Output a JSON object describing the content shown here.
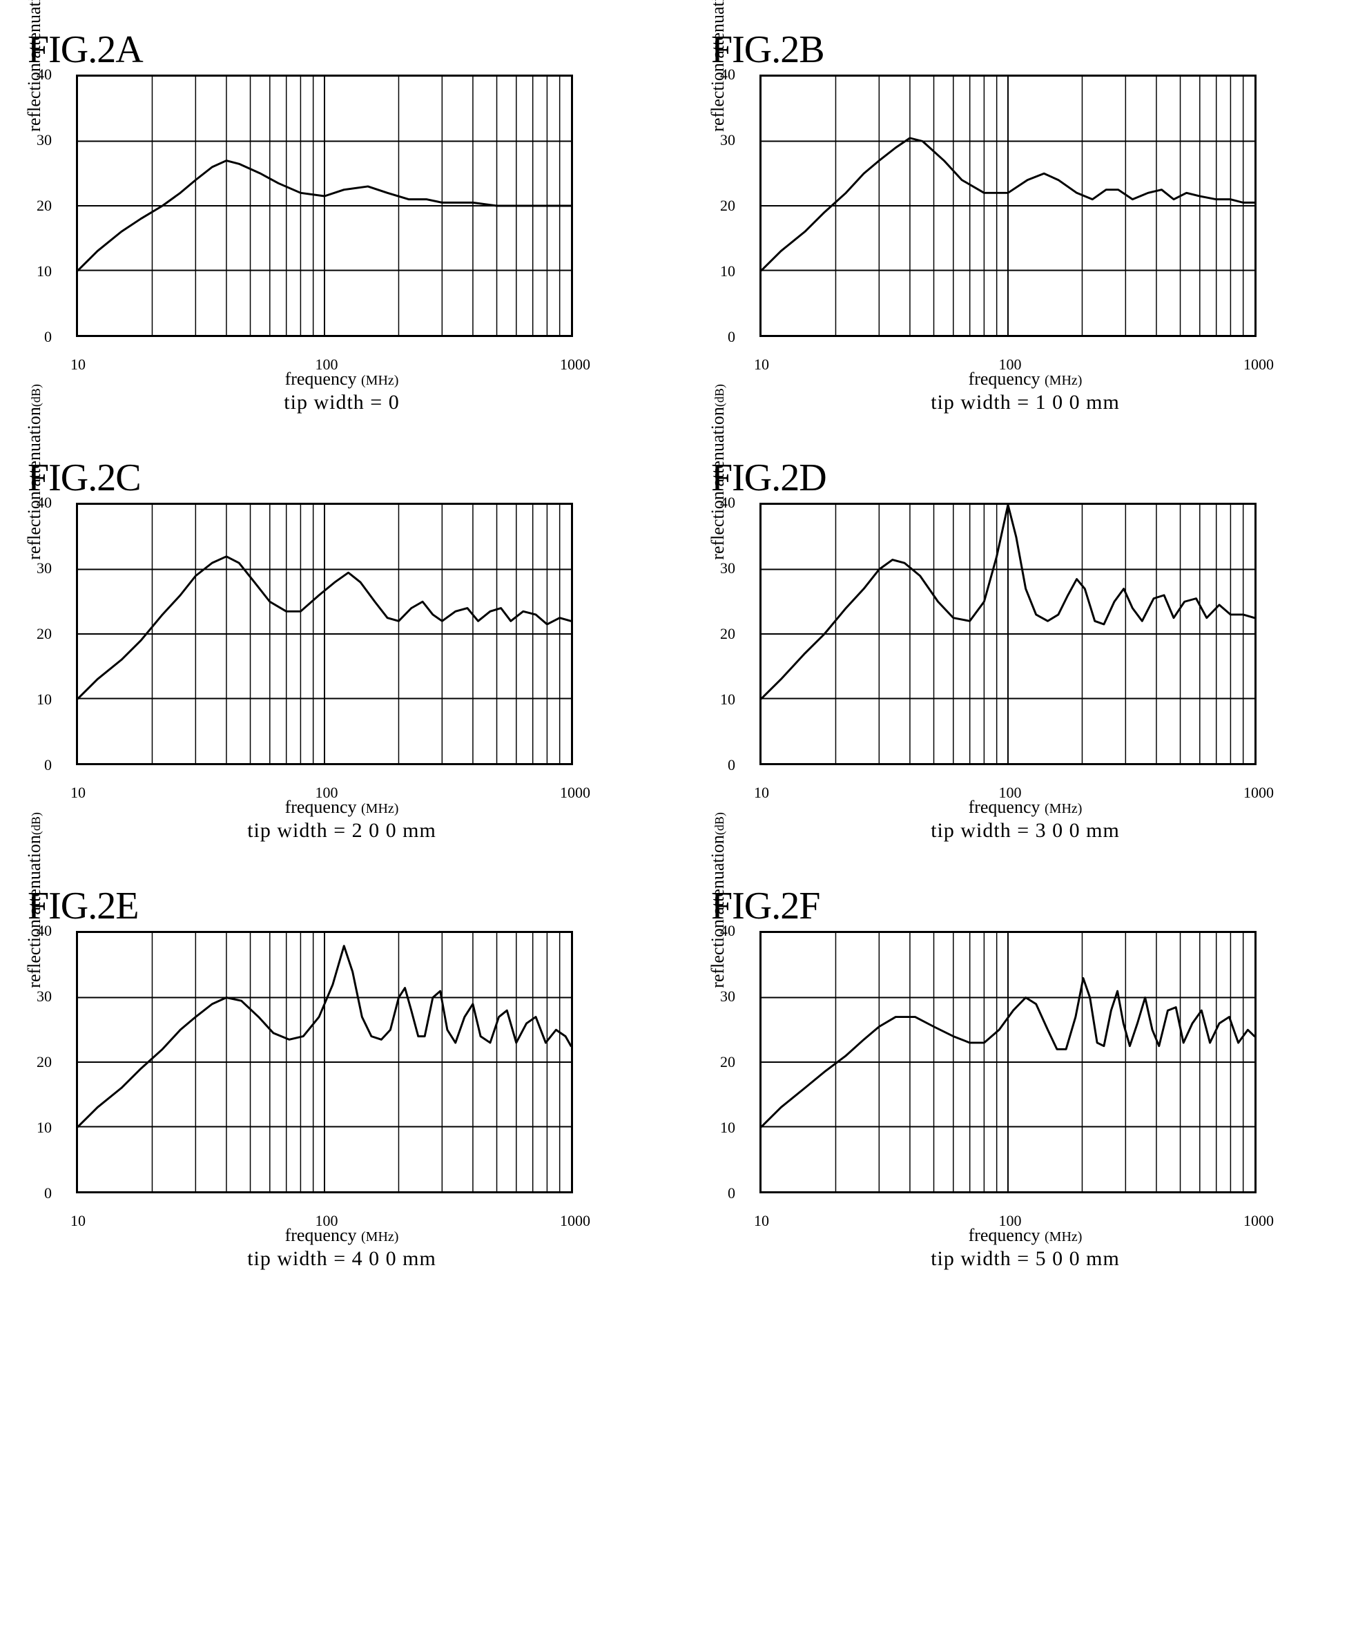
{
  "layout": {
    "cols": 2,
    "rows": 3
  },
  "axes": {
    "xlabel": "frequency",
    "xunit": "(MHz)",
    "ylabel": "reflection attenuation",
    "yunit": "(dB)",
    "xscale": "log",
    "xlim": [
      10,
      1000
    ],
    "xticks": [
      10,
      100,
      1000
    ],
    "ylim": [
      0,
      40
    ],
    "yticks": [
      0,
      10,
      20,
      30,
      40
    ],
    "grid_color": "#000000",
    "line_color": "#000000",
    "line_width": 3,
    "background_color": "#ffffff",
    "title_fontsize": 56,
    "label_fontsize": 26,
    "tick_fontsize": 22,
    "subtitle_fontsize": 30
  },
  "charts": [
    {
      "id": "A",
      "title": "FIG.2A",
      "subtitle": "tip width = 0",
      "points": [
        [
          10,
          10
        ],
        [
          12,
          13
        ],
        [
          15,
          16
        ],
        [
          18,
          18
        ],
        [
          22,
          20
        ],
        [
          26,
          22
        ],
        [
          30,
          24
        ],
        [
          35,
          26
        ],
        [
          40,
          27
        ],
        [
          45,
          26.5
        ],
        [
          55,
          25
        ],
        [
          65,
          23.5
        ],
        [
          80,
          22
        ],
        [
          100,
          21.5
        ],
        [
          120,
          22.5
        ],
        [
          150,
          23
        ],
        [
          180,
          22
        ],
        [
          220,
          21
        ],
        [
          260,
          21
        ],
        [
          300,
          20.5
        ],
        [
          400,
          20.5
        ],
        [
          500,
          20
        ],
        [
          700,
          20
        ],
        [
          1000,
          20
        ]
      ]
    },
    {
      "id": "B",
      "title": "FIG.2B",
      "subtitle": "tip width = 1 0 0 mm",
      "points": [
        [
          10,
          10
        ],
        [
          12,
          13
        ],
        [
          15,
          16
        ],
        [
          18,
          19
        ],
        [
          22,
          22
        ],
        [
          26,
          25
        ],
        [
          30,
          27
        ],
        [
          35,
          29
        ],
        [
          40,
          30.5
        ],
        [
          45,
          30
        ],
        [
          55,
          27
        ],
        [
          65,
          24
        ],
        [
          80,
          22
        ],
        [
          100,
          22
        ],
        [
          120,
          24
        ],
        [
          140,
          25
        ],
        [
          160,
          24
        ],
        [
          190,
          22
        ],
        [
          220,
          21
        ],
        [
          250,
          22.5
        ],
        [
          280,
          22.5
        ],
        [
          320,
          21
        ],
        [
          370,
          22
        ],
        [
          420,
          22.5
        ],
        [
          470,
          21
        ],
        [
          530,
          22
        ],
        [
          600,
          21.5
        ],
        [
          700,
          21
        ],
        [
          800,
          21
        ],
        [
          900,
          20.5
        ],
        [
          1000,
          20.5
        ]
      ]
    },
    {
      "id": "C",
      "title": "FIG.2C",
      "subtitle": "tip width = 2 0 0 mm",
      "points": [
        [
          10,
          10
        ],
        [
          12,
          13
        ],
        [
          15,
          16
        ],
        [
          18,
          19
        ],
        [
          22,
          23
        ],
        [
          26,
          26
        ],
        [
          30,
          29
        ],
        [
          35,
          31
        ],
        [
          40,
          32
        ],
        [
          45,
          31
        ],
        [
          52,
          28
        ],
        [
          60,
          25
        ],
        [
          70,
          23.5
        ],
        [
          80,
          23.5
        ],
        [
          95,
          26
        ],
        [
          110,
          28
        ],
        [
          125,
          29.5
        ],
        [
          140,
          28
        ],
        [
          160,
          25
        ],
        [
          180,
          22.5
        ],
        [
          200,
          22
        ],
        [
          225,
          24
        ],
        [
          250,
          25
        ],
        [
          275,
          23
        ],
        [
          300,
          22
        ],
        [
          340,
          23.5
        ],
        [
          380,
          24
        ],
        [
          420,
          22
        ],
        [
          470,
          23.5
        ],
        [
          520,
          24
        ],
        [
          570,
          22
        ],
        [
          640,
          23.5
        ],
        [
          720,
          23
        ],
        [
          800,
          21.5
        ],
        [
          900,
          22.5
        ],
        [
          1000,
          22
        ]
      ]
    },
    {
      "id": "D",
      "title": "FIG.2D",
      "subtitle": "tip width = 3 0 0 mm",
      "points": [
        [
          10,
          10
        ],
        [
          12,
          13
        ],
        [
          15,
          17
        ],
        [
          18,
          20
        ],
        [
          22,
          24
        ],
        [
          26,
          27
        ],
        [
          30,
          30
        ],
        [
          34,
          31.5
        ],
        [
          38,
          31
        ],
        [
          44,
          29
        ],
        [
          52,
          25
        ],
        [
          60,
          22.5
        ],
        [
          70,
          22
        ],
        [
          80,
          25
        ],
        [
          90,
          32
        ],
        [
          100,
          40
        ],
        [
          108,
          35
        ],
        [
          118,
          27
        ],
        [
          130,
          23
        ],
        [
          145,
          22
        ],
        [
          160,
          23
        ],
        [
          175,
          26
        ],
        [
          190,
          28.5
        ],
        [
          205,
          27
        ],
        [
          225,
          22
        ],
        [
          245,
          21.5
        ],
        [
          270,
          25
        ],
        [
          295,
          27
        ],
        [
          320,
          24
        ],
        [
          350,
          22
        ],
        [
          390,
          25.5
        ],
        [
          430,
          26
        ],
        [
          470,
          22.5
        ],
        [
          520,
          25
        ],
        [
          580,
          25.5
        ],
        [
          640,
          22.5
        ],
        [
          720,
          24.5
        ],
        [
          800,
          23
        ],
        [
          900,
          23
        ],
        [
          1000,
          22.5
        ]
      ]
    },
    {
      "id": "E",
      "title": "FIG.2E",
      "subtitle": "tip width = 4 0 0 mm",
      "points": [
        [
          10,
          10
        ],
        [
          12,
          13
        ],
        [
          15,
          16
        ],
        [
          18,
          19
        ],
        [
          22,
          22
        ],
        [
          26,
          25
        ],
        [
          30,
          27
        ],
        [
          35,
          29
        ],
        [
          40,
          30
        ],
        [
          46,
          29.5
        ],
        [
          54,
          27
        ],
        [
          62,
          24.5
        ],
        [
          72,
          23.5
        ],
        [
          82,
          24
        ],
        [
          95,
          27
        ],
        [
          108,
          32
        ],
        [
          120,
          38
        ],
        [
          130,
          34
        ],
        [
          142,
          27
        ],
        [
          155,
          24
        ],
        [
          170,
          23.5
        ],
        [
          185,
          25
        ],
        [
          200,
          30
        ],
        [
          212,
          31.5
        ],
        [
          225,
          28
        ],
        [
          240,
          24
        ],
        [
          255,
          24
        ],
        [
          275,
          30
        ],
        [
          295,
          31
        ],
        [
          315,
          25
        ],
        [
          340,
          23
        ],
        [
          370,
          27
        ],
        [
          400,
          29
        ],
        [
          430,
          24
        ],
        [
          470,
          23
        ],
        [
          510,
          27
        ],
        [
          550,
          28
        ],
        [
          600,
          23
        ],
        [
          660,
          26
        ],
        [
          720,
          27
        ],
        [
          790,
          23
        ],
        [
          870,
          25
        ],
        [
          950,
          24
        ],
        [
          1000,
          22.5
        ]
      ]
    },
    {
      "id": "F",
      "title": "FIG.2F",
      "subtitle": "tip width = 5 0 0 mm",
      "points": [
        [
          10,
          10
        ],
        [
          12,
          13
        ],
        [
          15,
          16
        ],
        [
          18,
          18.5
        ],
        [
          22,
          21
        ],
        [
          26,
          23.5
        ],
        [
          30,
          25.5
        ],
        [
          35,
          27
        ],
        [
          42,
          27
        ],
        [
          50,
          25.5
        ],
        [
          60,
          24
        ],
        [
          70,
          23
        ],
        [
          80,
          23
        ],
        [
          92,
          25
        ],
        [
          105,
          28
        ],
        [
          118,
          30
        ],
        [
          130,
          29
        ],
        [
          145,
          25
        ],
        [
          158,
          22
        ],
        [
          172,
          22
        ],
        [
          188,
          27
        ],
        [
          202,
          33
        ],
        [
          215,
          30
        ],
        [
          230,
          23
        ],
        [
          245,
          22.5
        ],
        [
          262,
          28
        ],
        [
          278,
          31
        ],
        [
          294,
          26
        ],
        [
          312,
          22.5
        ],
        [
          335,
          26
        ],
        [
          360,
          30
        ],
        [
          385,
          25
        ],
        [
          410,
          22.5
        ],
        [
          445,
          28
        ],
        [
          480,
          28.5
        ],
        [
          515,
          23
        ],
        [
          560,
          26
        ],
        [
          610,
          28
        ],
        [
          660,
          23
        ],
        [
          720,
          26
        ],
        [
          790,
          27
        ],
        [
          860,
          23
        ],
        [
          940,
          25
        ],
        [
          1000,
          24
        ]
      ]
    }
  ]
}
